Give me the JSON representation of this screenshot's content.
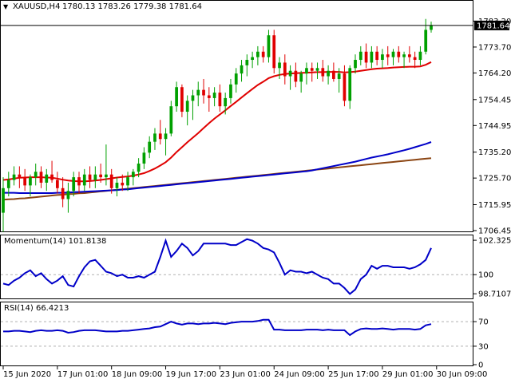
{
  "header": {
    "symbol": "XAUUSD,H4",
    "ohlc": "1780.13 1783.26 1779.38 1781.64"
  },
  "current_price_label": "1781.64",
  "colors": {
    "bull": "#00a000",
    "bear": "#e00000",
    "ma_fast": "#e00000",
    "ma_mid": "#0000c8",
    "ma_slow": "#8b4513",
    "indicator": "#0000c8"
  },
  "chart_data": [
    {
      "type": "candlestick",
      "title": "XAUUSD,H4",
      "y_ticks": [
        "1783.20",
        "1773.70",
        "1764.20",
        "1754.45",
        "1744.95",
        "1735.20",
        "1725.70",
        "1715.95",
        "1706.45"
      ],
      "y_tick_values": [
        1783.2,
        1773.7,
        1764.2,
        1754.45,
        1744.95,
        1735.2,
        1725.7,
        1715.95,
        1706.45
      ],
      "ylim": [
        1706.45,
        1784.5
      ],
      "x_ticks": [
        "15 Jun 2020",
        "17 Jun 01:00",
        "18 Jun 09:00",
        "19 Jun 17:00",
        "23 Jun 01:00",
        "24 Jun 09:00",
        "25 Jun 17:00",
        "29 Jun 01:00",
        "30 Jun 09:00"
      ],
      "x_tick_bar_index": [
        0,
        10,
        20,
        30,
        40,
        50,
        60,
        70,
        80
      ],
      "candles": [
        [
          1713,
          1726,
          1706,
          1722
        ],
        [
          1722,
          1728,
          1719,
          1725
        ],
        [
          1725,
          1730,
          1723,
          1727
        ],
        [
          1727,
          1730,
          1722,
          1726
        ],
        [
          1726,
          1729,
          1721,
          1723
        ],
        [
          1723,
          1727,
          1719,
          1726
        ],
        [
          1726,
          1731,
          1723,
          1728
        ],
        [
          1728,
          1730,
          1722,
          1724
        ],
        [
          1724,
          1729,
          1721,
          1727
        ],
        [
          1727,
          1732,
          1724,
          1725
        ],
        [
          1725,
          1728,
          1720,
          1722
        ],
        [
          1722,
          1726,
          1715,
          1718
        ],
        [
          1718,
          1724,
          1713,
          1721
        ],
        [
          1721,
          1728,
          1719,
          1726
        ],
        [
          1726,
          1728,
          1720,
          1723
        ],
        [
          1723,
          1729,
          1721,
          1727
        ],
        [
          1727,
          1730,
          1722,
          1725
        ],
        [
          1725,
          1730,
          1722,
          1727
        ],
        [
          1727,
          1731,
          1724,
          1726
        ],
        [
          1726,
          1738,
          1723,
          1727
        ],
        [
          1727,
          1729,
          1720,
          1722
        ],
        [
          1722,
          1726,
          1719,
          1724
        ],
        [
          1724,
          1727,
          1721,
          1723
        ],
        [
          1723,
          1728,
          1721,
          1726
        ],
        [
          1726,
          1729,
          1723,
          1728
        ],
        [
          1728,
          1733,
          1726,
          1731
        ],
        [
          1731,
          1737,
          1729,
          1735
        ],
        [
          1735,
          1741,
          1733,
          1739
        ],
        [
          1739,
          1744,
          1736,
          1742
        ],
        [
          1742,
          1747,
          1738,
          1740
        ],
        [
          1740,
          1744,
          1734,
          1742
        ],
        [
          1742,
          1754,
          1741,
          1752
        ],
        [
          1752,
          1761,
          1750,
          1759
        ],
        [
          1759,
          1760,
          1748,
          1750
        ],
        [
          1750,
          1756,
          1745,
          1754
        ],
        [
          1754,
          1758,
          1747,
          1756
        ],
        [
          1756,
          1761,
          1752,
          1758
        ],
        [
          1758,
          1762,
          1753,
          1756
        ],
        [
          1756,
          1759,
          1750,
          1755
        ],
        [
          1755,
          1759,
          1752,
          1757
        ],
        [
          1757,
          1760,
          1750,
          1752
        ],
        [
          1752,
          1757,
          1749,
          1755
        ],
        [
          1755,
          1762,
          1753,
          1760
        ],
        [
          1760,
          1766,
          1757,
          1764
        ],
        [
          1764,
          1769,
          1761,
          1767
        ],
        [
          1767,
          1771,
          1763,
          1769
        ],
        [
          1769,
          1772,
          1766,
          1770
        ],
        [
          1770,
          1774,
          1767,
          1772
        ],
        [
          1772,
          1774,
          1768,
          1770
        ],
        [
          1770,
          1780,
          1768,
          1778
        ],
        [
          1778,
          1780,
          1764,
          1766
        ],
        [
          1766,
          1770,
          1762,
          1768
        ],
        [
          1768,
          1771,
          1760,
          1763
        ],
        [
          1763,
          1767,
          1758,
          1765
        ],
        [
          1765,
          1768,
          1759,
          1761
        ],
        [
          1761,
          1765,
          1757,
          1764
        ],
        [
          1764,
          1768,
          1760,
          1766
        ],
        [
          1766,
          1768,
          1761,
          1765
        ],
        [
          1765,
          1768,
          1762,
          1766
        ],
        [
          1766,
          1769,
          1761,
          1763
        ],
        [
          1763,
          1767,
          1760,
          1765
        ],
        [
          1765,
          1768,
          1761,
          1762
        ],
        [
          1762,
          1766,
          1757,
          1764
        ],
        [
          1764,
          1767,
          1752,
          1754
        ],
        [
          1754,
          1767,
          1751,
          1766
        ],
        [
          1766,
          1771,
          1764,
          1769
        ],
        [
          1769,
          1774,
          1767,
          1772
        ],
        [
          1772,
          1775,
          1766,
          1768
        ],
        [
          1768,
          1774,
          1766,
          1772
        ],
        [
          1772,
          1774,
          1767,
          1769
        ],
        [
          1769,
          1773,
          1766,
          1771
        ],
        [
          1771,
          1774,
          1767,
          1770
        ],
        [
          1770,
          1773,
          1767,
          1772
        ],
        [
          1772,
          1774,
          1768,
          1770
        ],
        [
          1770,
          1772,
          1766,
          1771
        ],
        [
          1771,
          1774,
          1768,
          1770
        ],
        [
          1770,
          1772,
          1766,
          1769
        ],
        [
          1769,
          1774,
          1767,
          1772
        ],
        [
          1772,
          1784,
          1771,
          1780
        ],
        [
          1780,
          1783,
          1779,
          1781.6
        ]
      ],
      "ma_fast": [
        1725,
        1725.2,
        1725.5,
        1725.8,
        1725.9,
        1726,
        1726,
        1726,
        1725.9,
        1725.8,
        1725.5,
        1725.1,
        1724.8,
        1724.6,
        1724.5,
        1724.5,
        1724.6,
        1724.8,
        1725,
        1725.3,
        1725.6,
        1725.9,
        1726.1,
        1726.3,
        1726.6,
        1727,
        1727.5,
        1728.3,
        1729.2,
        1730.3,
        1731.5,
        1733.2,
        1735.2,
        1737,
        1738.8,
        1740.5,
        1742.2,
        1744,
        1745.8,
        1747.5,
        1749,
        1750.5,
        1752.1,
        1753.6,
        1755.2,
        1756.8,
        1758.3,
        1759.8,
        1761,
        1762.3,
        1763,
        1763.5,
        1763.8,
        1764,
        1764.1,
        1764.2,
        1764.3,
        1764.4,
        1764.5,
        1764.5,
        1764.6,
        1764.6,
        1764.6,
        1764.4,
        1764.5,
        1764.7,
        1765,
        1765.3,
        1765.6,
        1765.8,
        1765.9,
        1766,
        1766.2,
        1766.3,
        1766.4,
        1766.5,
        1766.5,
        1766.6,
        1767.2,
        1768.2
      ],
      "ma_mid": [
        1720.3,
        1720.3,
        1720.3,
        1720.2,
        1720.2,
        1720.2,
        1720.2,
        1720.2,
        1720.2,
        1720.2,
        1720.3,
        1720.3,
        1720.4,
        1720.5,
        1720.6,
        1720.7,
        1720.8,
        1720.9,
        1721,
        1721.1,
        1721.2,
        1721.3,
        1721.5,
        1721.6,
        1721.8,
        1722,
        1722.2,
        1722.4,
        1722.6,
        1722.8,
        1723,
        1723.2,
        1723.4,
        1723.6,
        1723.8,
        1724,
        1724.2,
        1724.4,
        1724.6,
        1724.8,
        1725,
        1725.2,
        1725.4,
        1725.6,
        1725.8,
        1726,
        1726.2,
        1726.4,
        1726.6,
        1726.8,
        1727,
        1727.2,
        1727.4,
        1727.6,
        1727.8,
        1728,
        1728.2,
        1728.5,
        1728.9,
        1729.3,
        1729.7,
        1730.1,
        1730.5,
        1730.9,
        1731.3,
        1731.7,
        1732.2,
        1732.7,
        1733.2,
        1733.6,
        1734,
        1734.4,
        1734.9,
        1735.4,
        1735.9,
        1736.4,
        1737,
        1737.6,
        1738.2,
        1738.9
      ],
      "ma_slow": [
        1717.8,
        1717.9,
        1718,
        1718.2,
        1718.3,
        1718.5,
        1718.7,
        1718.9,
        1719.1,
        1719.3,
        1719.5,
        1719.6,
        1719.8,
        1719.9,
        1720.1,
        1720.2,
        1720.4,
        1720.6,
        1720.8,
        1721,
        1721.2,
        1721.4,
        1721.6,
        1721.8,
        1722,
        1722.2,
        1722.4,
        1722.6,
        1722.8,
        1723,
        1723.2,
        1723.4,
        1723.6,
        1723.8,
        1724,
        1724.2,
        1724.4,
        1724.6,
        1724.8,
        1725,
        1725.2,
        1725.4,
        1725.6,
        1725.8,
        1726,
        1726.2,
        1726.4,
        1726.6,
        1726.8,
        1727,
        1727.2,
        1727.4,
        1727.6,
        1727.8,
        1728,
        1728.2,
        1728.4,
        1728.6,
        1728.8,
        1729,
        1729.2,
        1729.4,
        1729.6,
        1729.8,
        1730,
        1730.2,
        1730.4,
        1730.6,
        1730.8,
        1731,
        1731.2,
        1731.4,
        1731.6,
        1731.8,
        1732,
        1732.2,
        1732.4,
        1732.6,
        1732.8,
        1733
      ]
    },
    {
      "type": "line",
      "title": "Momentum(14) 101.8138",
      "y_ticks": [
        "102.3253",
        "100",
        "98.7107"
      ],
      "y_tick_values": [
        102.3253,
        100,
        98.7107
      ],
      "ylim": [
        98.45,
        102.6
      ],
      "values": [
        99.4,
        99.3,
        99.6,
        99.8,
        100.1,
        100.3,
        99.9,
        100.1,
        99.7,
        99.4,
        99.6,
        99.9,
        99.3,
        99.2,
        99.9,
        100.5,
        100.9,
        101.0,
        100.6,
        100.2,
        100.1,
        99.9,
        100.0,
        99.8,
        99.8,
        99.9,
        99.8,
        100.0,
        100.2,
        101.2,
        102.3,
        101.2,
        101.6,
        102.1,
        101.8,
        101.3,
        101.6,
        102.1,
        102.1,
        102.1,
        102.1,
        102.1,
        102.0,
        102.0,
        102.2,
        102.4,
        102.3,
        102.1,
        101.8,
        101.7,
        101.5,
        100.8,
        100.0,
        100.3,
        100.2,
        100.2,
        100.1,
        100.2,
        100.0,
        99.8,
        99.7,
        99.4,
        99.4,
        99.1,
        98.7,
        99.0,
        99.7,
        100.0,
        100.6,
        100.4,
        100.6,
        100.6,
        100.5,
        100.5,
        100.5,
        100.4,
        100.5,
        100.7,
        101.0,
        101.8
      ]
    },
    {
      "type": "line",
      "title": "RSI(14) 66.4213",
      "y_ticks": [
        "70",
        "30",
        "0"
      ],
      "y_tick_values": [
        70,
        30,
        0
      ],
      "ylim": [
        0,
        100
      ],
      "values": [
        54,
        54,
        55,
        55,
        54,
        53,
        55,
        56,
        55,
        55,
        56,
        55,
        52,
        53,
        55,
        56,
        56,
        56,
        55,
        54,
        54,
        54,
        55,
        55,
        56,
        57,
        58,
        59,
        61,
        62,
        66,
        70,
        67,
        65,
        67,
        67,
        66,
        67,
        67,
        68,
        67,
        66,
        68,
        69,
        70,
        70,
        70,
        71,
        73,
        73,
        57,
        57,
        56,
        56,
        56,
        56,
        57,
        57,
        57,
        56,
        57,
        56,
        56,
        56,
        48,
        54,
        58,
        59,
        58,
        58,
        59,
        58,
        57,
        58,
        58,
        58,
        57,
        58,
        64,
        66
      ]
    }
  ]
}
